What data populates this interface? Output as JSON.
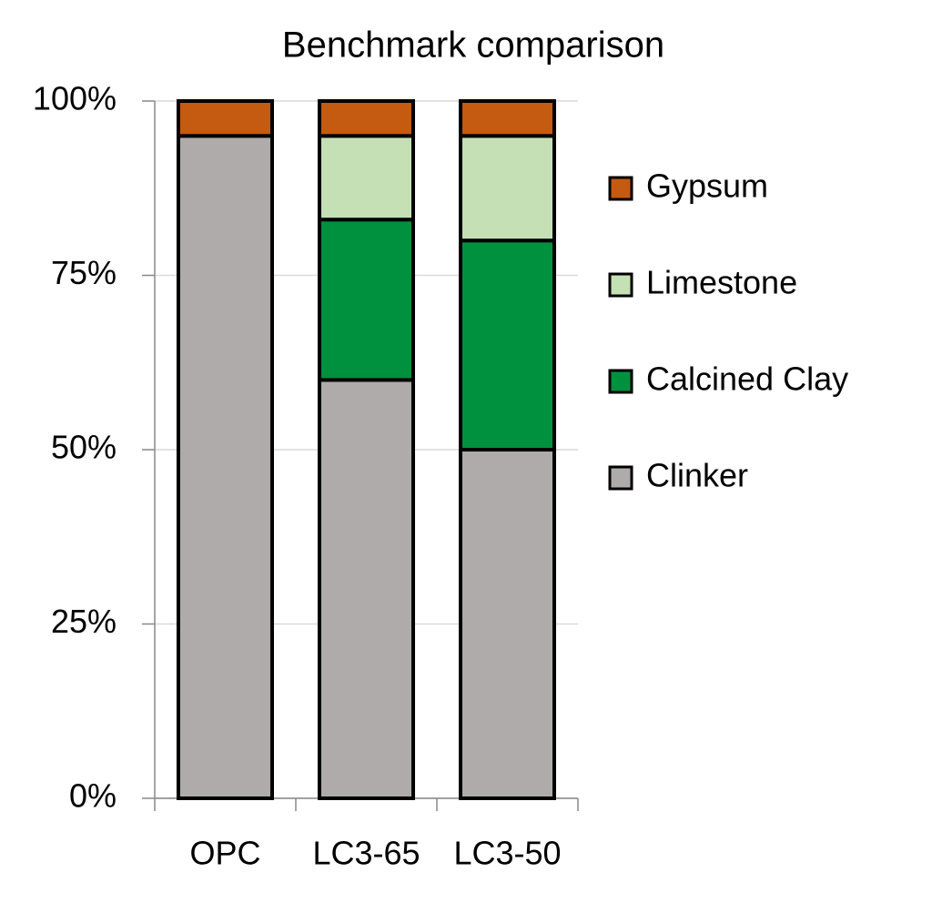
{
  "chart_data": {
    "type": "stacked_bar",
    "title": "Benchmark comparison",
    "categories": [
      "OPC",
      "LC3-65",
      "LC3-50"
    ],
    "series": [
      {
        "name": "Clinker",
        "color": "#afabab",
        "values": [
          95,
          60,
          50
        ]
      },
      {
        "name": "Calcined Clay",
        "color": "#00913f",
        "values": [
          0,
          23,
          30
        ]
      },
      {
        "name": "Limestone",
        "color": "#c5e0b4",
        "values": [
          0,
          12,
          15
        ]
      },
      {
        "name": "Gypsum",
        "color": "#c55a11",
        "values": [
          5,
          5,
          5
        ]
      }
    ],
    "ylim": [
      0,
      100
    ],
    "yticks": [
      {
        "value": 0,
        "label": "0%"
      },
      {
        "value": 25,
        "label": "25%"
      },
      {
        "value": 50,
        "label": "50%"
      },
      {
        "value": 75,
        "label": "75%"
      },
      {
        "value": 100,
        "label": "100%"
      }
    ],
    "grid": true,
    "legend": "right"
  }
}
